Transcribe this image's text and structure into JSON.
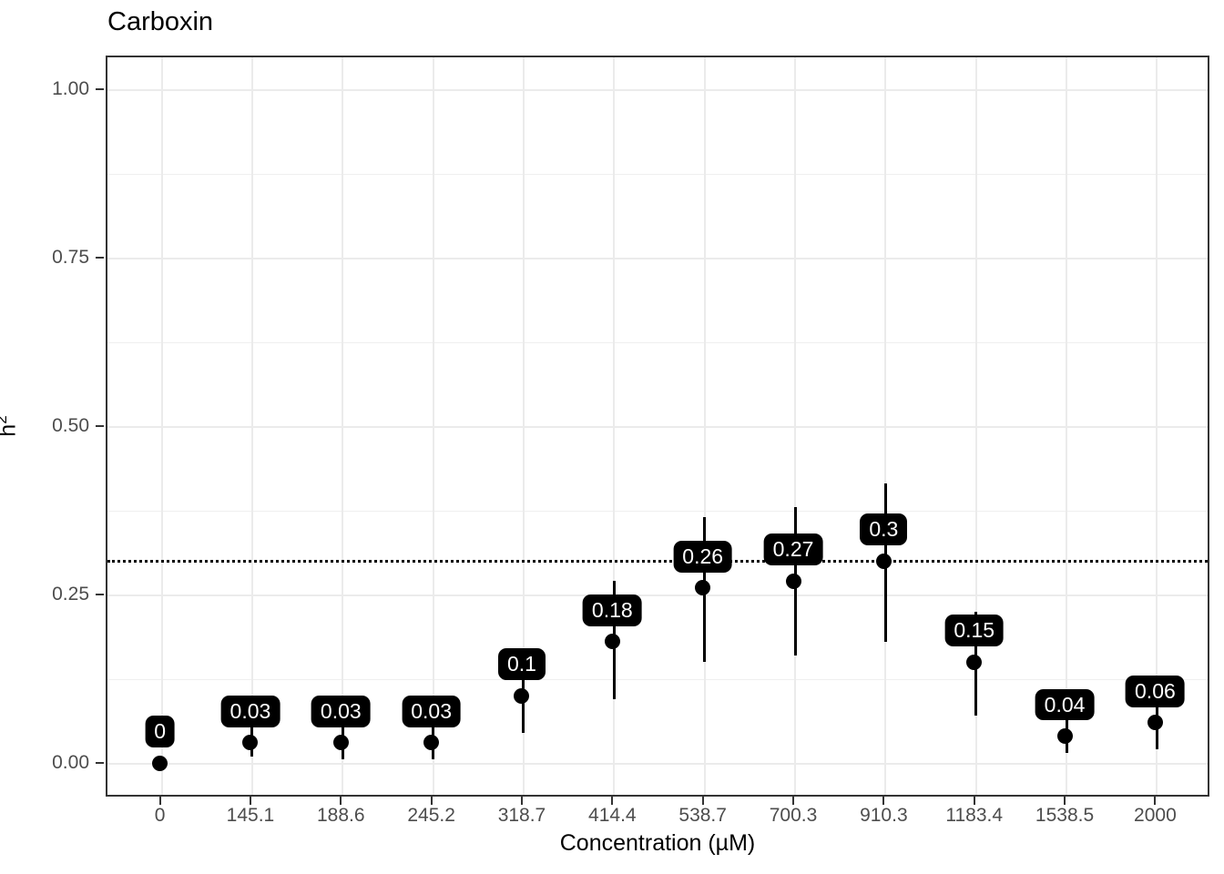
{
  "chart_data": {
    "type": "scatter",
    "title": "Carboxin",
    "xlabel": "Concentration (µM)",
    "ylabel": "h^2",
    "ylabel_base": "h",
    "ylabel_exponent": "2",
    "categories": [
      "0",
      "145.1",
      "188.6",
      "245.2",
      "318.7",
      "414.4",
      "538.7",
      "700.3",
      "910.3",
      "1183.4",
      "1538.5",
      "2000"
    ],
    "values": [
      0,
      0.03,
      0.03,
      0.03,
      0.1,
      0.18,
      0.26,
      0.27,
      0.3,
      0.15,
      0.04,
      0.06
    ],
    "point_labels": [
      "0",
      "0.03",
      "0.03",
      "0.03",
      "0.1",
      "0.18",
      "0.26",
      "0.27",
      "0.3",
      "0.15",
      "0.04",
      "0.06"
    ],
    "error_lower": [
      0,
      0.01,
      0.005,
      0.005,
      0.045,
      0.095,
      0.15,
      0.16,
      0.18,
      0.07,
      0.015,
      0.02
    ],
    "error_upper": [
      0,
      0.055,
      0.055,
      0.06,
      0.155,
      0.27,
      0.365,
      0.38,
      0.415,
      0.225,
      0.07,
      0.1
    ],
    "hline": {
      "value": 0.3,
      "style": "dotted",
      "color": "#000000"
    },
    "y_ticks": [
      {
        "value": 0.0,
        "label": "0.00"
      },
      {
        "value": 0.25,
        "label": "0.25"
      },
      {
        "value": 0.5,
        "label": "0.50"
      },
      {
        "value": 0.75,
        "label": "0.75"
      },
      {
        "value": 1.0,
        "label": "1.00"
      }
    ],
    "y_minor_ticks": [
      0.125,
      0.375,
      0.625,
      0.875
    ],
    "ylim": [
      -0.05,
      1.05
    ],
    "grid": "on",
    "legend": "none",
    "colors": {
      "point": "#000000",
      "errorbar": "#000000",
      "label_background": "#000000",
      "label_text": "#ffffff",
      "gridline": "#ebebeb",
      "panel_border": "#333333",
      "tick_text": "#4d4d4d",
      "axis_title_text": "#000000"
    }
  }
}
